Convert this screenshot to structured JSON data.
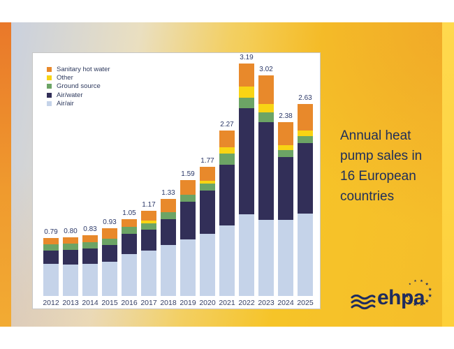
{
  "slide": {
    "title": "Annual heat pump sales in 16 European countries",
    "logo_text": "ehpa"
  },
  "colors": {
    "sanitary_hot_water": "#E8892B",
    "other": "#F8D414",
    "ground_source": "#6CA465",
    "air_water": "#322F58",
    "air_air": "#C5D3E9",
    "label_text": "#2A3767",
    "title_text": "#1E2E5A",
    "background_gold": "#F6C428"
  },
  "legend": [
    {
      "label": "Sanitary hot water",
      "color": "#E8892B"
    },
    {
      "label": "Other",
      "color": "#F8D414"
    },
    {
      "label": "Ground source",
      "color": "#6CA465"
    },
    {
      "label": "Air/water",
      "color": "#322F58"
    },
    {
      "label": "Air/air",
      "color": "#C5D3E9"
    }
  ],
  "chart_data": {
    "type": "bar",
    "stacked": true,
    "title": "Annual heat pump sales in 16 European countries",
    "xlabel": "",
    "ylabel": "",
    "unit": "millions of units",
    "grid": false,
    "legend_position": "top-left inside plot",
    "ylim": [
      0,
      3.4
    ],
    "categories": [
      "2012",
      "2013",
      "2014",
      "2015",
      "2016",
      "2017",
      "2018",
      "2019",
      "2020",
      "2021",
      "2022",
      "2023",
      "2024",
      "2025"
    ],
    "total_labels": [
      "0.79",
      "0.80",
      "0.83",
      "0.93",
      "1.05",
      "1.17",
      "1.33",
      "1.59",
      "1.77",
      "2.27",
      "3.19",
      "3.02",
      "2.38",
      "2.63"
    ],
    "totals": [
      0.79,
      0.8,
      0.83,
      0.93,
      1.05,
      1.17,
      1.33,
      1.59,
      1.77,
      2.27,
      3.19,
      3.02,
      2.38,
      2.63
    ],
    "series": [
      {
        "name": "Air/air",
        "color": "#C5D3E9",
        "values": [
          0.44,
          0.43,
          0.44,
          0.47,
          0.575,
          0.62,
          0.7,
          0.78,
          0.85,
          0.97,
          1.12,
          1.04,
          1.04,
          1.13
        ]
      },
      {
        "name": "Air/water",
        "color": "#322F58",
        "values": [
          0.185,
          0.2,
          0.21,
          0.23,
          0.275,
          0.29,
          0.35,
          0.51,
          0.6,
          0.83,
          1.45,
          1.34,
          0.86,
          0.97
        ]
      },
      {
        "name": "Ground source",
        "color": "#6CA465",
        "values": [
          0.085,
          0.09,
          0.085,
          0.085,
          0.095,
          0.09,
          0.095,
          0.095,
          0.09,
          0.15,
          0.15,
          0.14,
          0.105,
          0.095
        ]
      },
      {
        "name": "Other",
        "color": "#F8D414",
        "values": [
          0,
          0,
          0,
          0,
          0,
          0.03,
          0,
          0,
          0.04,
          0.09,
          0.15,
          0.11,
          0.065,
          0.075
        ]
      },
      {
        "name": "Sanitary hot water",
        "color": "#E8892B",
        "values": [
          0.08,
          0.08,
          0.095,
          0.145,
          0.105,
          0.14,
          0.185,
          0.205,
          0.19,
          0.23,
          0.32,
          0.39,
          0.31,
          0.36
        ]
      }
    ]
  }
}
